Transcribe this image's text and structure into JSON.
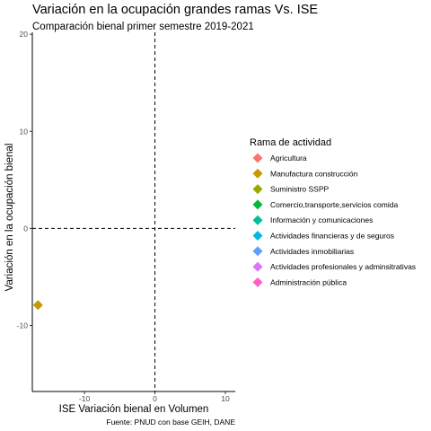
{
  "chart_data": {
    "type": "scatter",
    "title": "Variación en la ocupación grandes ramas Vs. ISE",
    "subtitle": "Comparación bienal primer semestre 2019-2021",
    "xlabel": "ISE Variación bienal en Volumen",
    "ylabel": "Variación en la ocupación bienal",
    "caption": "Fuente: PNUD con base GEIH, DANE",
    "xlim": [
      -17.4,
      11.4
    ],
    "ylim": [
      -16.8,
      20.2
    ],
    "xticks": [
      "-10",
      "0",
      "10"
    ],
    "yticks": [
      "-10",
      "0",
      "10",
      "20"
    ],
    "reference_lines": {
      "x": 0,
      "y": 0,
      "style": "dashed"
    },
    "grid": false,
    "marker": "diamond",
    "legend": {
      "title": "Rama de actividad",
      "placement": "right",
      "entries": [
        {
          "label": "Agricultura",
          "color": "#F8766D"
        },
        {
          "label": "Manufactura construcción",
          "color": "#C49A00"
        },
        {
          "label": "Suministro SSPP",
          "color": "#99A800"
        },
        {
          "label": "Comercio,transporte,servicios comida",
          "color": "#00BA38"
        },
        {
          "label": "Información y comunicaciones",
          "color": "#00BF94"
        },
        {
          "label": "Actividades financieras y de seguros",
          "color": "#00B9E3"
        },
        {
          "label": "Actividades inmobiliarias",
          "color": "#619CFF"
        },
        {
          "label": "Actividades profesionales y adminsitrativas",
          "color": "#DB72FB"
        },
        {
          "label": "Administración pública",
          "color": "#FF61C3"
        }
      ]
    },
    "points": [
      {
        "series": "Manufactura construcción",
        "x": -16.6,
        "y": -7.9,
        "color": "#C49A00"
      }
    ]
  }
}
